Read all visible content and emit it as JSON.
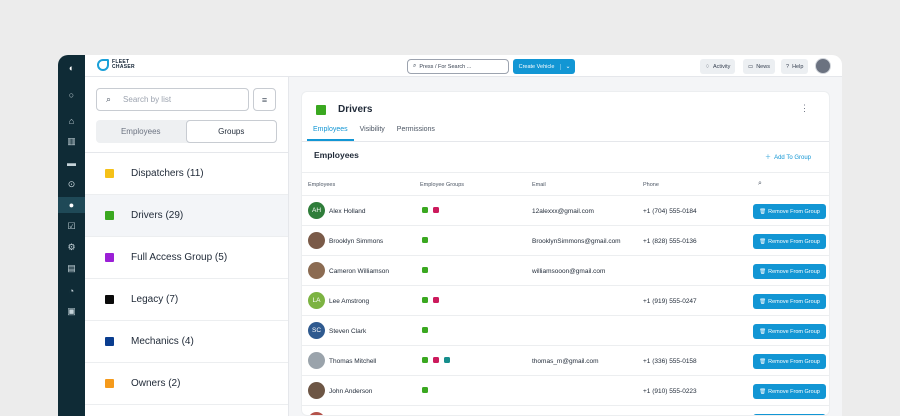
{
  "colors": {
    "accent": "#1296d4",
    "rail": "#0f2b36",
    "group_dispatchers": "#f5c118",
    "group_drivers": "#3aa820",
    "group_full_access": "#9b1fd6",
    "group_legacy": "#0a0a0a",
    "group_mechanics": "#0a3d8f",
    "group_owners": "#f59a1b",
    "tag_green": "#3aa820",
    "tag_magenta": "#cc1a5c",
    "tag_teal": "#168e8c"
  },
  "brand": {
    "line1": "FLEET",
    "line2": "CHASER"
  },
  "topbar": {
    "search_placeholder": "Press / For Search ...",
    "create_label": "Create Vehicle",
    "activity_label": "Activity",
    "news_label": "News",
    "help_label": "Help"
  },
  "left_panel": {
    "search_placeholder": "Search by list",
    "seg_employees": "Employees",
    "seg_groups": "Groups",
    "groups": [
      {
        "label": "Dispatchers (11)",
        "color": "#f5c118"
      },
      {
        "label": "Drivers (29)",
        "color": "#3aa820"
      },
      {
        "label": "Full Access Group (5)",
        "color": "#9b1fd6"
      },
      {
        "label": "Legacy (7)",
        "color": "#0a0a0a"
      },
      {
        "label": "Mechanics (4)",
        "color": "#0a3d8f"
      },
      {
        "label": "Owners (2)",
        "color": "#f59a1b"
      }
    ]
  },
  "detail": {
    "title": "Drivers",
    "tabs": [
      "Employees",
      "Visibility",
      "Permissions"
    ],
    "section_title": "Employees",
    "add_label": "Add To Group",
    "columns": [
      "Employees",
      "Employee Groups",
      "Email",
      "Phone"
    ],
    "remove_label": "Remove From Group",
    "rows": [
      {
        "initials": "AH",
        "name": "Alex Holland",
        "email": "12alexxx@gmail.com",
        "phone": "+1 (704) 555-0184"
      },
      {
        "initials": "",
        "name": "Brooklyn Simmons",
        "email": "BrooklynSimmons@gmail.com",
        "phone": "+1 (828) 555-0136"
      },
      {
        "initials": "",
        "name": "Cameron Williamson",
        "email": "williamsooon@gmail.com",
        "phone": ""
      },
      {
        "initials": "LA",
        "name": "Lee Amstrong",
        "email": "",
        "phone": "+1 (919) 555-0247"
      },
      {
        "initials": "SC",
        "name": "Steven Clark",
        "email": "",
        "phone": ""
      },
      {
        "initials": "",
        "name": "Thomas Mitchell",
        "email": "thomas_m@gmail.com",
        "phone": "+1 (336) 555-0158"
      },
      {
        "initials": "",
        "name": "John Anderson",
        "email": "",
        "phone": "+1 (910) 555-0223"
      }
    ]
  }
}
